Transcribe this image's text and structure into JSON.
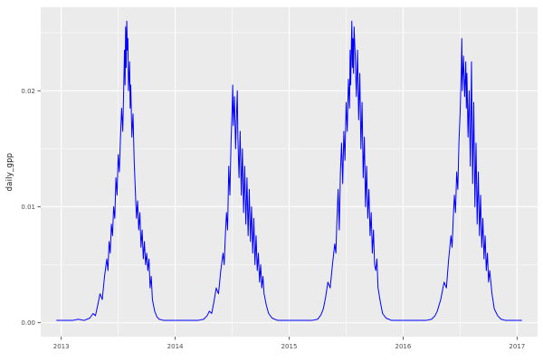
{
  "chart_data": {
    "type": "line",
    "title": "",
    "xlabel": "",
    "ylabel": "daily_gpp",
    "series_name": "daily_gpp",
    "legend": "none",
    "grid": true,
    "line_color": "#0000FF",
    "xlim": [
      2012.82,
      2017.18
    ],
    "ylim": [
      -0.0012,
      0.0272
    ],
    "x_ticks": [
      2013,
      2014,
      2015,
      2016,
      2017
    ],
    "x_tick_labels": [
      "2013",
      "2014",
      "2015",
      "2016",
      "2017"
    ],
    "y_ticks": [
      0,
      0.01,
      0.02
    ],
    "y_tick_labels": [
      "0.00",
      "0.01",
      "0.02"
    ],
    "x_minor": [
      2013.5,
      2014.5,
      2015.5,
      2016.5
    ],
    "y_minor": [
      0.005,
      0.015,
      0.025
    ],
    "theme": {
      "panel_bg": "#EBEBEB",
      "grid_color": "#FFFFFF",
      "axis_text_color": "#4D4D4D",
      "tick_color": "#333333",
      "bg": "#FFFFFF"
    },
    "points": [
      [
        2012.96,
        0.0002
      ],
      [
        2013.0,
        0.0002
      ],
      [
        2013.05,
        0.0002
      ],
      [
        2013.1,
        0.0002
      ],
      [
        2013.15,
        0.0003
      ],
      [
        2013.2,
        0.0002
      ],
      [
        2013.25,
        0.0004
      ],
      [
        2013.28,
        0.0008
      ],
      [
        2013.3,
        0.0006
      ],
      [
        2013.32,
        0.0015
      ],
      [
        2013.34,
        0.0025
      ],
      [
        2013.36,
        0.002
      ],
      [
        2013.38,
        0.004
      ],
      [
        2013.4,
        0.0055
      ],
      [
        2013.41,
        0.0045
      ],
      [
        2013.42,
        0.007
      ],
      [
        2013.43,
        0.006
      ],
      [
        2013.44,
        0.0085
      ],
      [
        2013.45,
        0.0075
      ],
      [
        2013.46,
        0.01
      ],
      [
        2013.47,
        0.009
      ],
      [
        2013.48,
        0.0125
      ],
      [
        2013.49,
        0.011
      ],
      [
        2013.5,
        0.0145
      ],
      [
        2013.51,
        0.013
      ],
      [
        2013.52,
        0.016
      ],
      [
        2013.53,
        0.0185
      ],
      [
        2013.54,
        0.0165
      ],
      [
        2013.55,
        0.021
      ],
      [
        2013.555,
        0.0235
      ],
      [
        2013.56,
        0.0205
      ],
      [
        2013.565,
        0.0255
      ],
      [
        2013.57,
        0.022
      ],
      [
        2013.575,
        0.026
      ],
      [
        2013.58,
        0.0235
      ],
      [
        2013.585,
        0.0245
      ],
      [
        2013.59,
        0.02
      ],
      [
        2013.6,
        0.0225
      ],
      [
        2013.605,
        0.0185
      ],
      [
        2013.61,
        0.0205
      ],
      [
        2013.62,
        0.016
      ],
      [
        2013.63,
        0.018
      ],
      [
        2013.64,
        0.014
      ],
      [
        2013.65,
        0.0115
      ],
      [
        2013.66,
        0.009
      ],
      [
        2013.67,
        0.0105
      ],
      [
        2013.68,
        0.008
      ],
      [
        2013.69,
        0.0095
      ],
      [
        2013.7,
        0.0065
      ],
      [
        2013.71,
        0.008
      ],
      [
        2013.72,
        0.0055
      ],
      [
        2013.73,
        0.007
      ],
      [
        2013.74,
        0.005
      ],
      [
        2013.75,
        0.006
      ],
      [
        2013.76,
        0.0045
      ],
      [
        2013.77,
        0.0055
      ],
      [
        2013.78,
        0.003
      ],
      [
        2013.79,
        0.004
      ],
      [
        2013.8,
        0.002
      ],
      [
        2013.82,
        0.001
      ],
      [
        2013.84,
        0.0005
      ],
      [
        2013.86,
        0.0003
      ],
      [
        2013.9,
        0.0002
      ],
      [
        2013.95,
        0.0002
      ],
      [
        2014.0,
        0.0002
      ],
      [
        2014.05,
        0.0002
      ],
      [
        2014.1,
        0.0002
      ],
      [
        2014.15,
        0.0002
      ],
      [
        2014.2,
        0.0002
      ],
      [
        2014.25,
        0.0003
      ],
      [
        2014.28,
        0.0006
      ],
      [
        2014.3,
        0.001
      ],
      [
        2014.32,
        0.0008
      ],
      [
        2014.34,
        0.0018
      ],
      [
        2014.36,
        0.003
      ],
      [
        2014.38,
        0.0025
      ],
      [
        2014.4,
        0.0045
      ],
      [
        2014.42,
        0.006
      ],
      [
        2014.43,
        0.005
      ],
      [
        2014.44,
        0.0075
      ],
      [
        2014.45,
        0.0095
      ],
      [
        2014.46,
        0.008
      ],
      [
        2014.47,
        0.0135
      ],
      [
        2014.48,
        0.011
      ],
      [
        2014.49,
        0.0155
      ],
      [
        2014.5,
        0.0185
      ],
      [
        2014.505,
        0.0205
      ],
      [
        2014.51,
        0.017
      ],
      [
        2014.52,
        0.0195
      ],
      [
        2014.53,
        0.015
      ],
      [
        2014.54,
        0.0185
      ],
      [
        2014.545,
        0.02
      ],
      [
        2014.55,
        0.016
      ],
      [
        2014.56,
        0.0125
      ],
      [
        2014.57,
        0.0165
      ],
      [
        2014.58,
        0.011
      ],
      [
        2014.59,
        0.015
      ],
      [
        2014.6,
        0.0095
      ],
      [
        2014.61,
        0.0135
      ],
      [
        2014.62,
        0.0085
      ],
      [
        2014.63,
        0.0125
      ],
      [
        2014.64,
        0.0075
      ],
      [
        2014.65,
        0.0115
      ],
      [
        2014.66,
        0.007
      ],
      [
        2014.67,
        0.01
      ],
      [
        2014.68,
        0.006
      ],
      [
        2014.69,
        0.009
      ],
      [
        2014.7,
        0.005
      ],
      [
        2014.71,
        0.0075
      ],
      [
        2014.72,
        0.0045
      ],
      [
        2014.73,
        0.006
      ],
      [
        2014.74,
        0.0035
      ],
      [
        2014.75,
        0.005
      ],
      [
        2014.76,
        0.003
      ],
      [
        2014.77,
        0.004
      ],
      [
        2014.78,
        0.0025
      ],
      [
        2014.8,
        0.0015
      ],
      [
        2014.82,
        0.0008
      ],
      [
        2014.85,
        0.0004
      ],
      [
        2014.9,
        0.0002
      ],
      [
        2014.95,
        0.0002
      ],
      [
        2015.0,
        0.0002
      ],
      [
        2015.05,
        0.0002
      ],
      [
        2015.1,
        0.0002
      ],
      [
        2015.15,
        0.0002
      ],
      [
        2015.2,
        0.0002
      ],
      [
        2015.25,
        0.0003
      ],
      [
        2015.28,
        0.0007
      ],
      [
        2015.3,
        0.0012
      ],
      [
        2015.32,
        0.0022
      ],
      [
        2015.34,
        0.0035
      ],
      [
        2015.36,
        0.003
      ],
      [
        2015.38,
        0.005
      ],
      [
        2015.4,
        0.0068
      ],
      [
        2015.41,
        0.006
      ],
      [
        2015.42,
        0.009
      ],
      [
        2015.43,
        0.0115
      ],
      [
        2015.44,
        0.008
      ],
      [
        2015.45,
        0.013
      ],
      [
        2015.46,
        0.0155
      ],
      [
        2015.47,
        0.012
      ],
      [
        2015.48,
        0.0165
      ],
      [
        2015.49,
        0.014
      ],
      [
        2015.5,
        0.019
      ],
      [
        2015.51,
        0.0165
      ],
      [
        2015.52,
        0.021
      ],
      [
        2015.53,
        0.0185
      ],
      [
        2015.535,
        0.0235
      ],
      [
        2015.54,
        0.0205
      ],
      [
        2015.55,
        0.026
      ],
      [
        2015.555,
        0.022
      ],
      [
        2015.56,
        0.0245
      ],
      [
        2015.565,
        0.0215
      ],
      [
        2015.57,
        0.0255
      ],
      [
        2015.58,
        0.023
      ],
      [
        2015.59,
        0.0195
      ],
      [
        2015.6,
        0.0235
      ],
      [
        2015.61,
        0.0175
      ],
      [
        2015.62,
        0.0215
      ],
      [
        2015.63,
        0.015
      ],
      [
        2015.64,
        0.019
      ],
      [
        2015.65,
        0.0125
      ],
      [
        2015.66,
        0.016
      ],
      [
        2015.67,
        0.01
      ],
      [
        2015.68,
        0.0135
      ],
      [
        2015.69,
        0.009
      ],
      [
        2015.7,
        0.0115
      ],
      [
        2015.71,
        0.0075
      ],
      [
        2015.72,
        0.0095
      ],
      [
        2015.73,
        0.006
      ],
      [
        2015.74,
        0.008
      ],
      [
        2015.75,
        0.005
      ],
      [
        2015.76,
        0.0045
      ],
      [
        2015.77,
        0.0055
      ],
      [
        2015.78,
        0.003
      ],
      [
        2015.8,
        0.0018
      ],
      [
        2015.82,
        0.0008
      ],
      [
        2015.85,
        0.0004
      ],
      [
        2015.9,
        0.0002
      ],
      [
        2015.95,
        0.0002
      ],
      [
        2016.0,
        0.0002
      ],
      [
        2016.05,
        0.0002
      ],
      [
        2016.1,
        0.0002
      ],
      [
        2016.15,
        0.0002
      ],
      [
        2016.2,
        0.0002
      ],
      [
        2016.25,
        0.0003
      ],
      [
        2016.28,
        0.0006
      ],
      [
        2016.3,
        0.001
      ],
      [
        2016.33,
        0.002
      ],
      [
        2016.36,
        0.0035
      ],
      [
        2016.38,
        0.003
      ],
      [
        2016.4,
        0.0055
      ],
      [
        2016.42,
        0.0075
      ],
      [
        2016.43,
        0.0065
      ],
      [
        2016.44,
        0.009
      ],
      [
        2016.45,
        0.011
      ],
      [
        2016.46,
        0.0095
      ],
      [
        2016.47,
        0.013
      ],
      [
        2016.48,
        0.0115
      ],
      [
        2016.49,
        0.0155
      ],
      [
        2016.5,
        0.018
      ],
      [
        2016.51,
        0.0215
      ],
      [
        2016.515,
        0.0245
      ],
      [
        2016.52,
        0.02
      ],
      [
        2016.53,
        0.023
      ],
      [
        2016.54,
        0.0195
      ],
      [
        2016.55,
        0.0225
      ],
      [
        2016.555,
        0.0185
      ],
      [
        2016.56,
        0.0215
      ],
      [
        2016.57,
        0.016
      ],
      [
        2016.58,
        0.02
      ],
      [
        2016.59,
        0.0135
      ],
      [
        2016.6,
        0.0225
      ],
      [
        2016.61,
        0.012
      ],
      [
        2016.62,
        0.019
      ],
      [
        2016.63,
        0.01
      ],
      [
        2016.64,
        0.0155
      ],
      [
        2016.65,
        0.0085
      ],
      [
        2016.66,
        0.013
      ],
      [
        2016.67,
        0.0075
      ],
      [
        2016.68,
        0.011
      ],
      [
        2016.69,
        0.0065
      ],
      [
        2016.7,
        0.009
      ],
      [
        2016.71,
        0.0055
      ],
      [
        2016.72,
        0.0075
      ],
      [
        2016.73,
        0.0045
      ],
      [
        2016.74,
        0.006
      ],
      [
        2016.75,
        0.0035
      ],
      [
        2016.76,
        0.0045
      ],
      [
        2016.78,
        0.0025
      ],
      [
        2016.8,
        0.0012
      ],
      [
        2016.83,
        0.0006
      ],
      [
        2016.86,
        0.0003
      ],
      [
        2016.9,
        0.0002
      ],
      [
        2016.95,
        0.0002
      ],
      [
        2017.0,
        0.0002
      ],
      [
        2017.04,
        0.0002
      ]
    ]
  }
}
